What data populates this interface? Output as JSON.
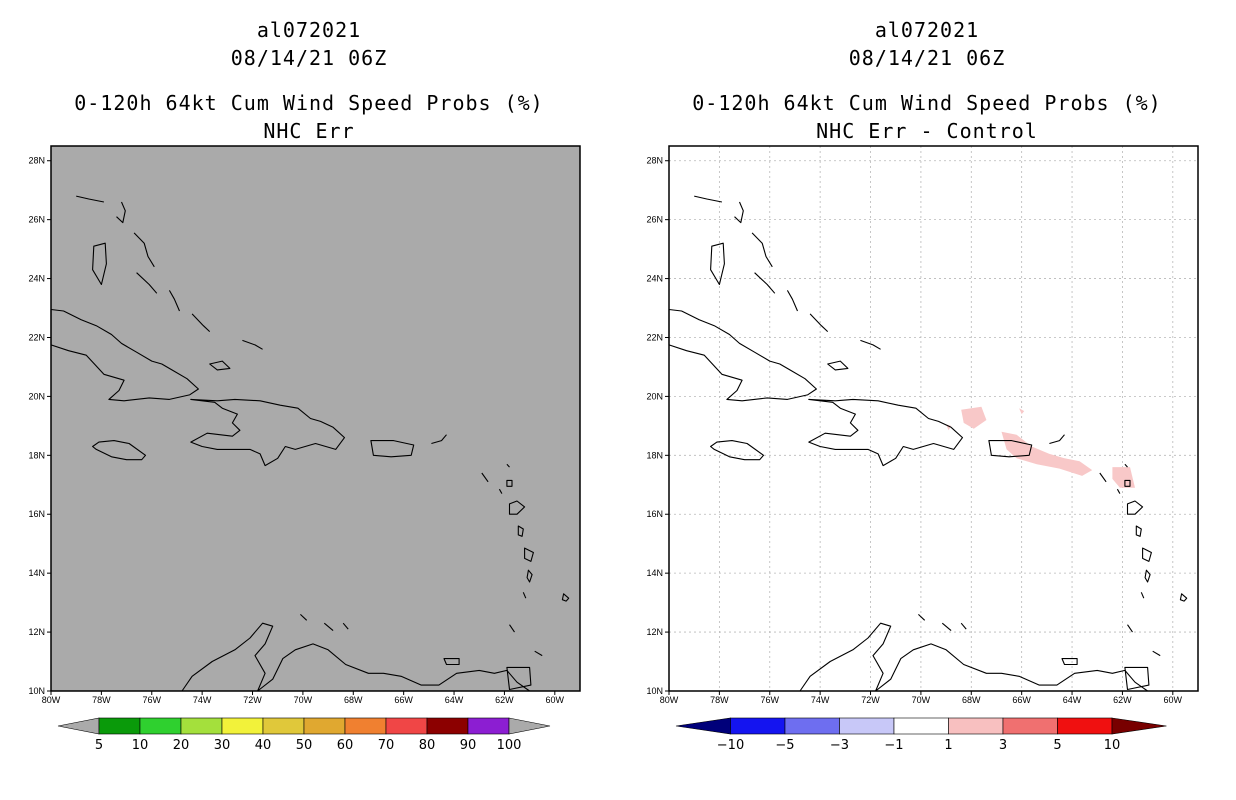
{
  "chart_data": [
    {
      "type": "heatmap",
      "panel": "left",
      "title_lines": [
        "al072021",
        "08/14/21 06Z",
        "0-120h 64kt Cum Wind Speed Probs (%)",
        "NHC Err"
      ],
      "map_background": "#aaaaaa",
      "grid": false,
      "x_range_deg_w": [
        80,
        59
      ],
      "y_range_deg_n": [
        10,
        28.5
      ],
      "x_ticks": [
        "80W",
        "78W",
        "76W",
        "74W",
        "72W",
        "70W",
        "68W",
        "66W",
        "64W",
        "62W",
        "60W"
      ],
      "y_ticks": [
        "10N",
        "12N",
        "14N",
        "16N",
        "18N",
        "20N",
        "22N",
        "24N",
        "26N",
        "28N"
      ],
      "colorbar": {
        "labels": [
          "5",
          "10",
          "20",
          "30",
          "40",
          "50",
          "60",
          "70",
          "80",
          "90",
          "100"
        ],
        "colors": [
          "#aaaaaa",
          "#0a9a0a",
          "#2fd02f",
          "#a4e03c",
          "#f2f23a",
          "#e0c83a",
          "#e0a830",
          "#f08030",
          "#f04646",
          "#8c0000",
          "#8c1ed2",
          "#aaaaaa"
        ]
      }
    },
    {
      "type": "heatmap",
      "panel": "right",
      "title_lines": [
        "al072021",
        "08/14/21 06Z",
        "0-120h 64kt Cum Wind Speed Probs (%)",
        "NHC Err - Control"
      ],
      "map_background": "#ffffff",
      "grid": true,
      "x_range_deg_w": [
        80,
        59
      ],
      "y_range_deg_n": [
        10,
        28.5
      ],
      "x_ticks": [
        "80W",
        "78W",
        "76W",
        "74W",
        "72W",
        "70W",
        "68W",
        "66W",
        "64W",
        "62W",
        "60W"
      ],
      "y_ticks": [
        "10N",
        "12N",
        "14N",
        "16N",
        "18N",
        "20N",
        "22N",
        "24N",
        "26N",
        "28N"
      ],
      "colorbar": {
        "labels": [
          "-10",
          "-5",
          "-3",
          "-1",
          "1",
          "3",
          "5",
          "10"
        ],
        "colors": [
          "#00007a",
          "#1414f0",
          "#6e6ef0",
          "#c8c8f8",
          "#ffffff",
          "#f8c0c0",
          "#f07070",
          "#f01010",
          "#780000"
        ]
      },
      "anomaly_value_class": "1 to 3",
      "anomaly_color": "#f8c8c8"
    }
  ]
}
